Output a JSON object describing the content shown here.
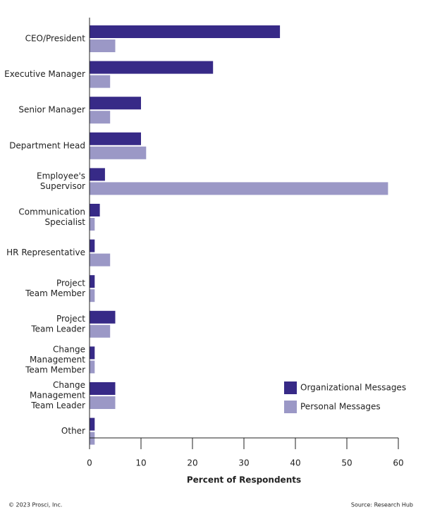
{
  "chart_data": {
    "type": "hbar",
    "categories": [
      [
        "CEO/President"
      ],
      [
        "Executive Manager"
      ],
      [
        "Senior Manager"
      ],
      [
        "Department Head"
      ],
      [
        "Employee's",
        "Supervisor"
      ],
      [
        "Communication",
        "Specialist"
      ],
      [
        "HR Representative"
      ],
      [
        "Project",
        "Team Member"
      ],
      [
        "Project",
        "Team Leader"
      ],
      [
        "Change",
        "Management",
        "Team Member"
      ],
      [
        "Change",
        "Management",
        "Team Leader"
      ],
      [
        "Other"
      ]
    ],
    "series": [
      {
        "name": "Organizational Messages",
        "color": "#372a87",
        "values": [
          37,
          24,
          10,
          10,
          3,
          2,
          1,
          1,
          5,
          1,
          5,
          1
        ]
      },
      {
        "name": "Personal Messages",
        "color": "#9b98c6",
        "values": [
          5,
          4,
          4,
          11,
          58,
          1,
          4,
          1,
          4,
          1,
          5,
          1
        ]
      }
    ],
    "xlabel": "Percent of Respondents",
    "xlim": [
      0,
      60
    ],
    "xticks": [
      0,
      10,
      20,
      30,
      40,
      50,
      60
    ],
    "legend": "lower right"
  },
  "footer": {
    "left": "© 2023 Prosci, Inc.",
    "right": "Source: Research Hub"
  }
}
